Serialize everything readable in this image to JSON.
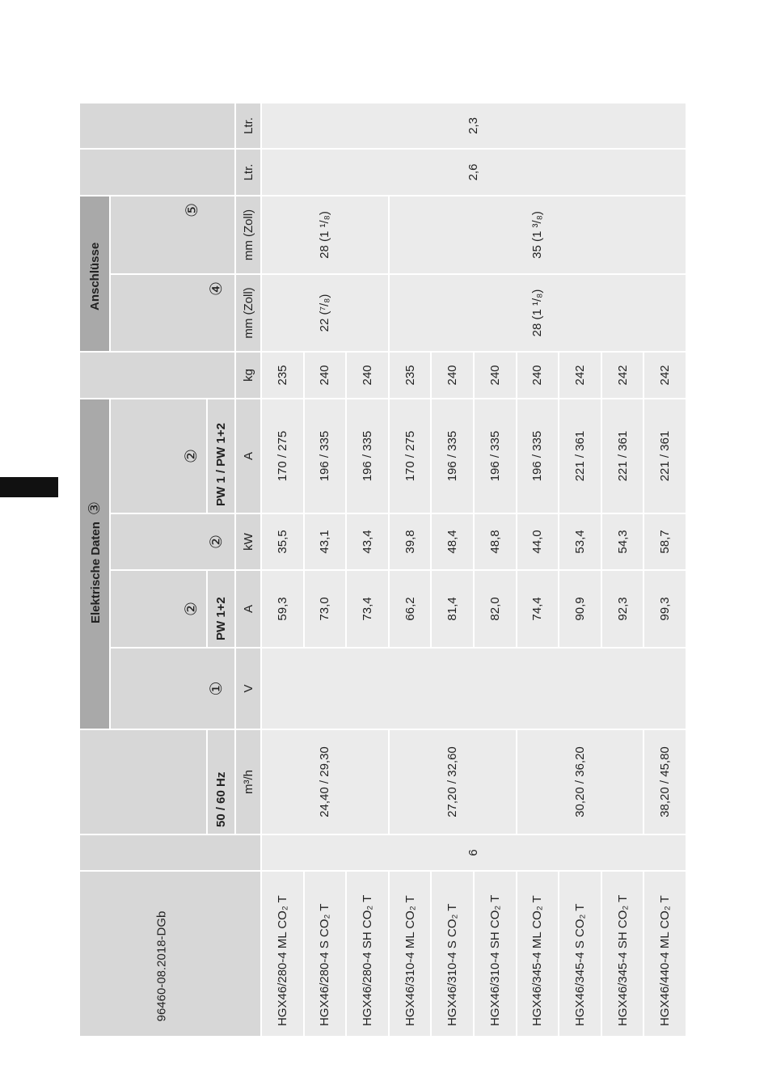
{
  "table": {
    "group_headers": {
      "electrical": "Elektrische Daten",
      "electrical_note": "③",
      "connections": "Anschlüsse"
    },
    "notes": {
      "voltage": "①",
      "current": "②",
      "power": "②",
      "start_current": "②",
      "conn1": "④",
      "conn2": "⑤"
    },
    "sub_headers": {
      "frequency": "50 / 60 Hz",
      "current": "PW 1+2",
      "start_current": "PW 1 / PW 1+2"
    },
    "units": [
      "m³/h",
      "V",
      "A",
      "kW",
      "A",
      "kg",
      "mm (Zoll)",
      "mm (Zoll)",
      "Ltr.",
      "Ltr."
    ],
    "common": {
      "cylinders": "6",
      "oil1": "2,6",
      "oil2": "2,3"
    },
    "displacement": [
      "24,40 / 29,30",
      "27,20 / 32,60",
      "30,20 / 36,20",
      "38,20 / 45,80"
    ],
    "conn1": [
      "22 (⁷/₈)",
      "28 (1 ¹/₈)"
    ],
    "conn2": [
      "28 (1 ¹/₈)",
      "35 (1 ³/₈)"
    ],
    "rows": [
      {
        "model": "HGX46/280-4 ML CO₂ T",
        "current": "59,3",
        "power": "35,5",
        "start_current": "170 / 275",
        "weight": 235
      },
      {
        "model": "HGX46/280-4 S CO₂ T",
        "current": "73,0",
        "power": "43,1",
        "start_current": "196 / 335",
        "weight": 240
      },
      {
        "model": "HGX46/280-4 SH CO₂ T",
        "current": "73,4",
        "power": "43,4",
        "start_current": "196 / 335",
        "weight": 240
      },
      {
        "model": "HGX46/310-4 ML CO₂ T",
        "current": "66,2",
        "power": "39,8",
        "start_current": "170 / 275",
        "weight": 235
      },
      {
        "model": "HGX46/310-4 S CO₂ T",
        "current": "81,4",
        "power": "48,4",
        "start_current": "196 / 335",
        "weight": 240
      },
      {
        "model": "HGX46/310-4 SH CO₂ T",
        "current": "82,0",
        "power": "48,8",
        "start_current": "196 / 335",
        "weight": 240
      },
      {
        "model": "HGX46/345-4 ML CO₂ T",
        "current": "74,4",
        "power": "44,0",
        "start_current": "196 / 335",
        "weight": 240
      },
      {
        "model": "HGX46/345-4 S CO₂ T",
        "current": "90,9",
        "power": "53,4",
        "start_current": "221 / 361",
        "weight": 242
      },
      {
        "model": "HGX46/345-4 SH CO₂ T",
        "current": "92,3",
        "power": "54,3",
        "start_current": "221 / 361",
        "weight": 242
      },
      {
        "model": "HGX46/440-4 ML CO₂ T",
        "current": "99,3",
        "power": "58,7",
        "start_current": "221 / 361",
        "weight": 242
      }
    ]
  },
  "footer": {
    "code": "96460-08.2018-DGb"
  }
}
